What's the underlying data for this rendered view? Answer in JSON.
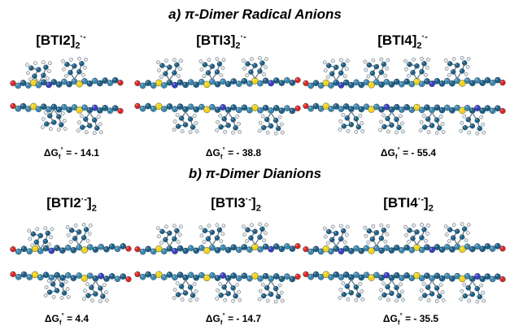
{
  "section_a": {
    "title": "a) π-Dimer Radical Anions",
    "items": [
      {
        "base": "[BTI2]",
        "sub": "2",
        "sup": "·-",
        "dg_label": "ΔG",
        "dg_sub": "f",
        "dg_sup": "°",
        "dg_value": " = - 14.1",
        "chains": 2
      },
      {
        "base": "[BTI3]",
        "sub": "2",
        "sup": "·-",
        "dg_label": "ΔG",
        "dg_sub": "f",
        "dg_sup": "°",
        "dg_value": " = - 38.8",
        "chains": 3
      },
      {
        "base": "[BTI4]",
        "sub": "2",
        "sup": "·-",
        "dg_label": "ΔG",
        "dg_sub": "f",
        "dg_sup": "°",
        "dg_value": " = - 55.4",
        "chains": 4
      }
    ]
  },
  "section_b": {
    "title": "b) π-Dimer Dianions",
    "items": [
      {
        "base": "[BTI2",
        "sup": "·-",
        "close": "]",
        "sub": "2",
        "dg_label": "ΔG",
        "dg_sub": "f",
        "dg_sup": "°",
        "dg_value": " = 4.4",
        "chains": 2
      },
      {
        "base": "[BTI3",
        "sup": "·-",
        "close": "]",
        "sub": "2",
        "dg_label": "ΔG",
        "dg_sub": "f",
        "dg_sup": "°",
        "dg_value": " = - 14.7",
        "chains": 3
      },
      {
        "base": "[BTI4",
        "sup": "·-",
        "close": "]",
        "sub": "2",
        "dg_label": "ΔG",
        "dg_sub": "f",
        "dg_sup": "°",
        "dg_value": " = - 35.5",
        "chains": 4
      }
    ]
  },
  "atom_colors": {
    "carbon": "#1f5f86",
    "carbon_light": "#3d87ad",
    "sulfur": "#f2d21a",
    "oxygen": "#e0241f",
    "nitrogen": "#3a3fc2",
    "hydrogen": "#e9e9e9"
  }
}
